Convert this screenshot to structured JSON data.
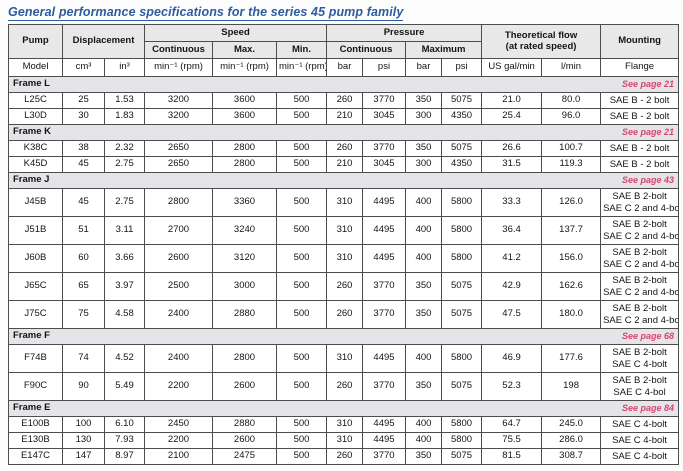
{
  "title": "General performance specifications for the series 45 pump family",
  "colors": {
    "title_blue": "#2d5b9e",
    "see_page_red": "#d8456f",
    "header_bg": "#e8e8e8",
    "band_bg": "#e4e4e9",
    "border": "#4d4d4d"
  },
  "table": {
    "header": {
      "pump": "Pump",
      "displacement": "Displacement",
      "speed": "Speed",
      "pressure": "Pressure",
      "flow_line1": "Theoretical flow",
      "flow_line2": "(at rated speed)",
      "mounting": "Mounting",
      "speed_sub": [
        "Continuous",
        "Max.",
        "Min."
      ],
      "pressure_sub": [
        "Continuous",
        "Maximum"
      ],
      "units": [
        "Model",
        "cm³",
        "in³",
        "min⁻¹ (rpm)",
        "min⁻¹ (rpm)",
        "min⁻¹ (rpm)",
        "bar",
        "psi",
        "bar",
        "psi",
        "US gal/min",
        "l/min",
        "Flange"
      ]
    },
    "groups": [
      {
        "frame": "Frame L",
        "see_page": "See page 21",
        "rows": [
          {
            "cells": [
              "L25C",
              "25",
              "1.53",
              "3200",
              "3600",
              "500",
              "260",
              "3770",
              "350",
              "5075",
              "21.0",
              "80.0"
            ],
            "mounting": [
              "SAE B - 2 bolt"
            ]
          },
          {
            "cells": [
              "L30D",
              "30",
              "1.83",
              "3200",
              "3600",
              "500",
              "210",
              "3045",
              "300",
              "4350",
              "25.4",
              "96.0"
            ],
            "mounting": [
              "SAE B - 2 bolt"
            ]
          }
        ]
      },
      {
        "frame": "Frame K",
        "see_page": "See page 21",
        "rows": [
          {
            "cells": [
              "K38C",
              "38",
              "2.32",
              "2650",
              "2800",
              "500",
              "260",
              "3770",
              "350",
              "5075",
              "26.6",
              "100.7"
            ],
            "mounting": [
              "SAE B - 2 bolt"
            ]
          },
          {
            "cells": [
              "K45D",
              "45",
              "2.75",
              "2650",
              "2800",
              "500",
              "210",
              "3045",
              "300",
              "4350",
              "31.5",
              "119.3"
            ],
            "mounting": [
              "SAE B - 2 bolt"
            ]
          }
        ]
      },
      {
        "frame": "Frame J",
        "see_page": "See page 43",
        "rows": [
          {
            "cells": [
              "J45B",
              "45",
              "2.75",
              "2800",
              "3360",
              "500",
              "310",
              "4495",
              "400",
              "5800",
              "33.3",
              "126.0"
            ],
            "mounting": [
              "SAE B 2-bolt",
              "SAE C 2 and 4-bolt"
            ]
          },
          {
            "cells": [
              "J51B",
              "51",
              "3.11",
              "2700",
              "3240",
              "500",
              "310",
              "4495",
              "400",
              "5800",
              "36.4",
              "137.7"
            ],
            "mounting": [
              "SAE B 2-bolt",
              "SAE C 2 and 4-bolt"
            ]
          },
          {
            "cells": [
              "J60B",
              "60",
              "3.66",
              "2600",
              "3120",
              "500",
              "310",
              "4495",
              "400",
              "5800",
              "41.2",
              "156.0"
            ],
            "mounting": [
              "SAE B 2-bolt",
              "SAE C 2 and 4-bolt"
            ]
          },
          {
            "cells": [
              "J65C",
              "65",
              "3.97",
              "2500",
              "3000",
              "500",
              "260",
              "3770",
              "350",
              "5075",
              "42.9",
              "162.6"
            ],
            "mounting": [
              "SAE B 2-bolt",
              "SAE C 2 and 4-bolt"
            ]
          },
          {
            "cells": [
              "J75C",
              "75",
              "4.58",
              "2400",
              "2880",
              "500",
              "260",
              "3770",
              "350",
              "5075",
              "47.5",
              "180.0"
            ],
            "mounting": [
              "SAE B 2-bolt",
              "SAE C 2 and 4-bolt"
            ]
          }
        ]
      },
      {
        "frame": "Frame F",
        "see_page": "See page 68",
        "rows": [
          {
            "cells": [
              "F74B",
              "74",
              "4.52",
              "2400",
              "2800",
              "500",
              "310",
              "4495",
              "400",
              "5800",
              "46.9",
              "177.6"
            ],
            "mounting": [
              "SAE B 2-bolt",
              "SAE C 4-bolt"
            ]
          },
          {
            "cells": [
              "F90C",
              "90",
              "5.49",
              "2200",
              "2600",
              "500",
              "260",
              "3770",
              "350",
              "5075",
              "52.3",
              "198"
            ],
            "mounting": [
              "SAE B 2-bolt",
              "SAE C 4-bol"
            ]
          }
        ]
      },
      {
        "frame": "Frame E",
        "see_page": "See page 84",
        "rows": [
          {
            "cells": [
              "E100B",
              "100",
              "6.10",
              "2450",
              "2880",
              "500",
              "310",
              "4495",
              "400",
              "5800",
              "64.7",
              "245.0"
            ],
            "mounting": [
              "SAE C 4-bolt"
            ]
          },
          {
            "cells": [
              "E130B",
              "130",
              "7.93",
              "2200",
              "2600",
              "500",
              "310",
              "4495",
              "400",
              "5800",
              "75.5",
              "286.0"
            ],
            "mounting": [
              "SAE C 4-bolt"
            ]
          },
          {
            "cells": [
              "E147C",
              "147",
              "8.97",
              "2100",
              "2475",
              "500",
              "260",
              "3770",
              "350",
              "5075",
              "81.5",
              "308.7"
            ],
            "mounting": [
              "SAE C 4-bolt"
            ]
          }
        ]
      }
    ]
  }
}
